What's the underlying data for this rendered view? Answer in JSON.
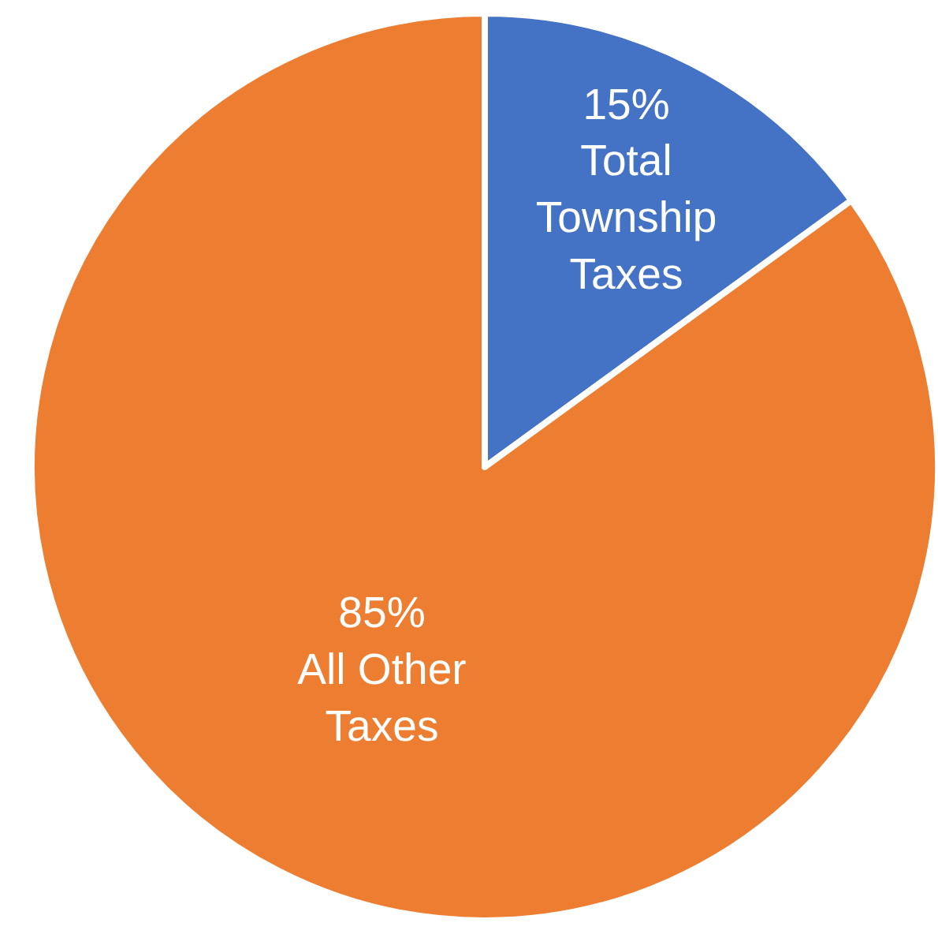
{
  "chart_data": {
    "type": "pie",
    "categories": [
      "Total Township Taxes",
      "All Other Taxes"
    ],
    "values": [
      15,
      85
    ],
    "value_labels": [
      "15%",
      "85%"
    ],
    "colors": [
      "#4472c4",
      "#ed7d31"
    ],
    "legend": false
  }
}
